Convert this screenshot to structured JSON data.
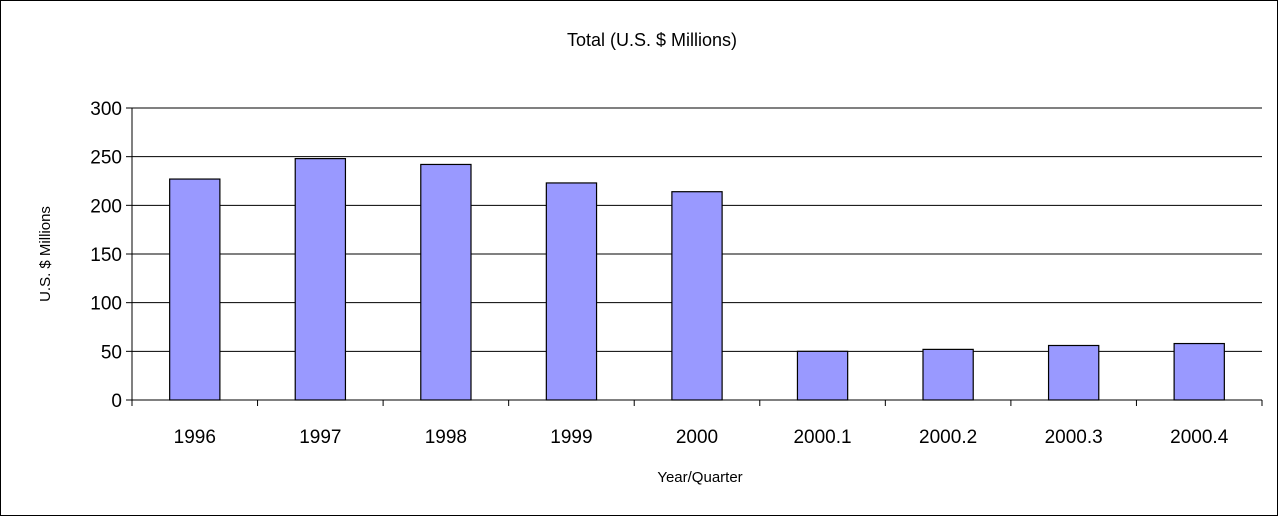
{
  "chart_data": {
    "type": "bar",
    "title": "Total (U.S. $ Millions)",
    "xlabel": "Year/Quarter",
    "ylabel": "U.S. $ Millions",
    "categories": [
      "1996",
      "1997",
      "1998",
      "1999",
      "2000",
      "2000.1",
      "2000.2",
      "2000.3",
      "2000.4"
    ],
    "values": [
      227,
      248,
      242,
      223,
      214,
      50,
      52,
      56,
      58
    ],
    "ylim": [
      0,
      300
    ],
    "yticks": [
      0,
      50,
      100,
      150,
      200,
      250,
      300
    ],
    "grid": true,
    "legend": "none",
    "bar_color": "#9999ff"
  }
}
